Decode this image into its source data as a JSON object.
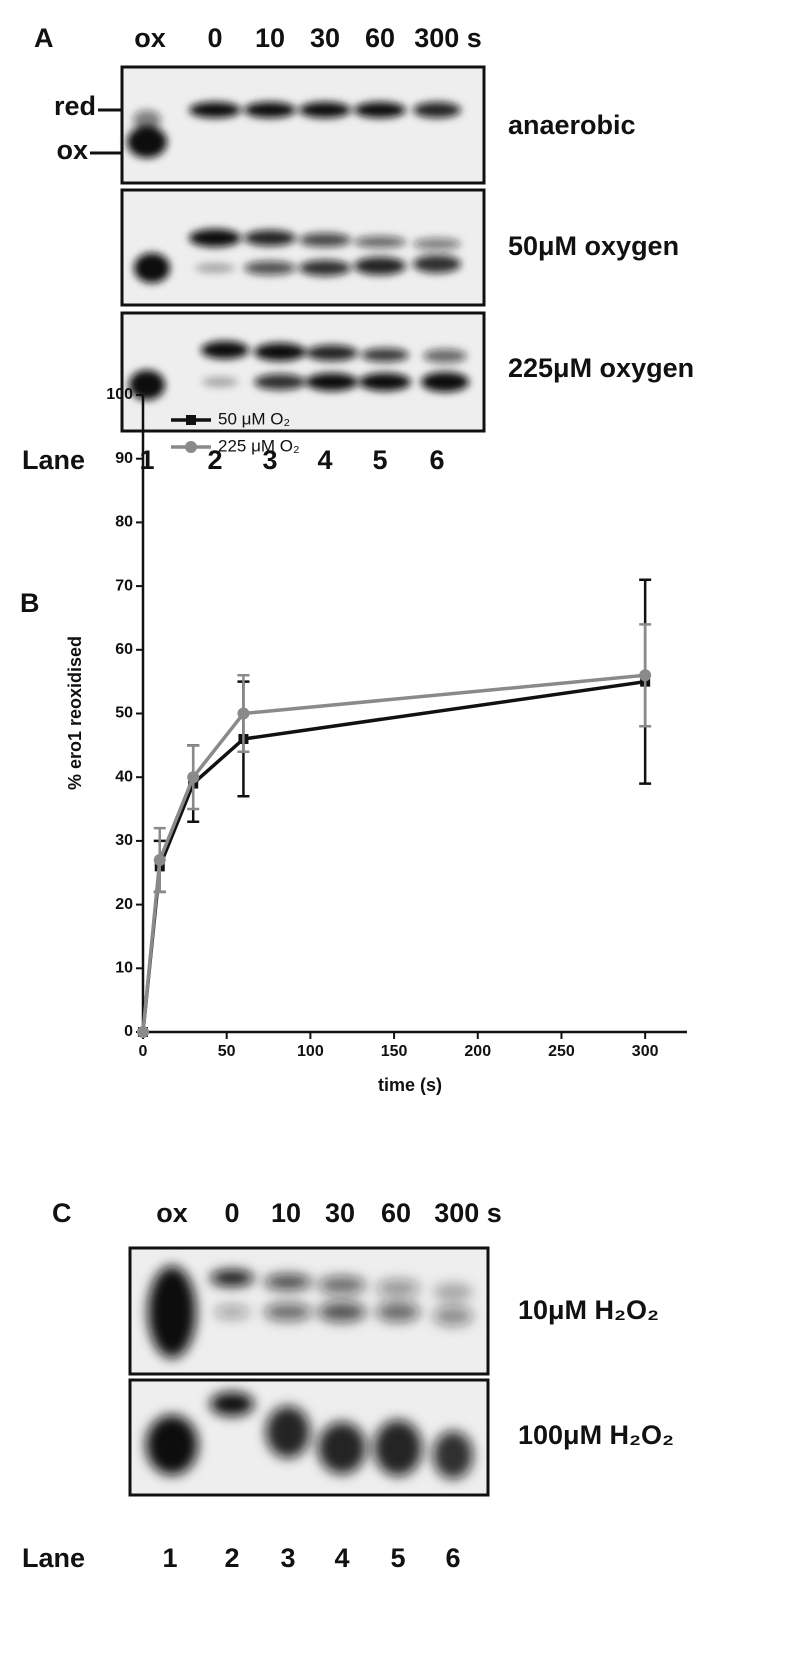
{
  "panel_a": {
    "label": "A",
    "columns": [
      "ox",
      "0",
      "10",
      "30",
      "60",
      "300 s"
    ],
    "markers": [
      "red",
      "ox"
    ],
    "rows": [
      "anaerobic",
      "50μM oxygen",
      "225μM oxygen"
    ],
    "lane_title": "Lane",
    "lanes": [
      "1",
      "2",
      "3",
      "4",
      "5",
      "6"
    ]
  },
  "chart_data": {
    "type": "line",
    "panel_label": "B",
    "x_label": "time (s)",
    "y_label": "% ero1 reoxidised",
    "x": [
      0,
      10,
      30,
      60,
      300
    ],
    "series": [
      {
        "name": "50 μM O₂",
        "color": "#111111",
        "marker": "square",
        "values": [
          0,
          26,
          39,
          46,
          55
        ],
        "errors": [
          0,
          4,
          6,
          9,
          16
        ]
      },
      {
        "name": "225 μM O₂",
        "color": "#8a8a8a",
        "marker": "circle",
        "values": [
          0,
          27,
          40,
          50,
          56
        ],
        "errors": [
          0,
          5,
          5,
          6,
          8
        ]
      }
    ],
    "xlim": [
      0,
      325
    ],
    "ylim": [
      0,
      100
    ],
    "xticks": [
      0,
      50,
      100,
      150,
      200,
      250,
      300
    ],
    "yticks": [
      0,
      10,
      20,
      30,
      40,
      50,
      60,
      70,
      80,
      90,
      100
    ],
    "legend": "upper left"
  },
  "panel_c": {
    "label": "C",
    "columns": [
      "ox",
      "0",
      "10",
      "30",
      "60",
      "300 s"
    ],
    "rows": [
      "10μM H₂O₂",
      "100μM H₂O₂"
    ],
    "lane_title": "Lane",
    "lanes": [
      "1",
      "2",
      "3",
      "4",
      "5",
      "6"
    ]
  }
}
